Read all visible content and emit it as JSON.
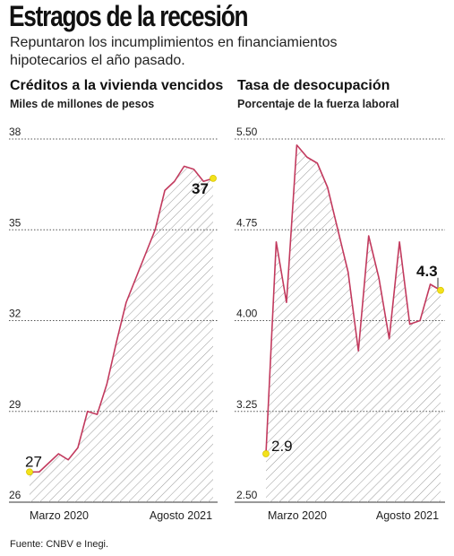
{
  "header": {
    "title": "Estragos de la recesión",
    "subtitle": "Repuntaron los incumplimientos en financiamientos hipotecarios el año pasado."
  },
  "footer": {
    "source": "Fuente: CNBV e Inegi."
  },
  "colors": {
    "line": "#c23a5e",
    "hatch": "#9a9a9a",
    "marker": "#f3e21b",
    "grid": "#555555"
  },
  "chart_data": [
    {
      "type": "area",
      "title": "Créditos a la vivienda vencidos",
      "subtitle": "Miles de millones de pesos",
      "ylim": [
        26,
        38
      ],
      "yticks": [
        26,
        29,
        32,
        35,
        38
      ],
      "xtick_labels": [
        "Marzo 2020",
        "Agosto 2021"
      ],
      "values": [
        27.0,
        27.0,
        27.3,
        27.6,
        27.4,
        27.8,
        29.0,
        28.9,
        29.9,
        31.3,
        32.6,
        33.4,
        34.2,
        35.0,
        36.3,
        36.6,
        37.1,
        37.0,
        36.6,
        36.7
      ],
      "annotations": [
        {
          "index": 0,
          "label": "27",
          "bold": false
        },
        {
          "index": 19,
          "label": "37",
          "bold": true
        }
      ],
      "grid": "horizontal dotted"
    },
    {
      "type": "area",
      "title": "Tasa de desocupación",
      "subtitle": "Porcentaje de la fuerza laboral",
      "ylim": [
        2.5,
        5.5
      ],
      "yticks": [
        "2.50",
        "3.25",
        "4.00",
        "4.75",
        "5.50"
      ],
      "xtick_labels": [
        "Marzo 2020",
        "Agosto 2021"
      ],
      "values": [
        2.9,
        4.65,
        4.15,
        5.45,
        5.35,
        5.3,
        5.1,
        4.75,
        4.4,
        3.75,
        4.7,
        4.35,
        3.85,
        4.65,
        3.97,
        4.0,
        4.3,
        4.25
      ],
      "annotations": [
        {
          "index": 0,
          "label": "2.9",
          "bold": false
        },
        {
          "index": 17,
          "label": "4.3",
          "bold": true
        }
      ],
      "grid": "horizontal dotted"
    }
  ]
}
